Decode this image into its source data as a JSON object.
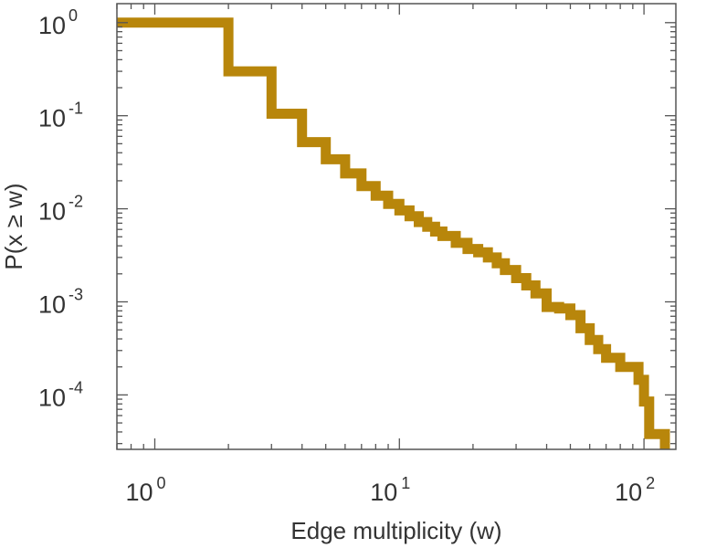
{
  "chart_data": {
    "type": "line",
    "xlabel": "Edge multiplicity (w)",
    "ylabel": "P(x ≥ w)",
    "x_scale": "log",
    "y_scale": "log",
    "xlim": [
      0.7,
      135
    ],
    "ylim": [
      2.6e-05,
      1.6
    ],
    "grid": false,
    "x_ticks": [
      {
        "value": 1,
        "base": "10",
        "exp": "0"
      },
      {
        "value": 10,
        "base": "10",
        "exp": "1"
      },
      {
        "value": 100,
        "base": "10",
        "exp": "2"
      }
    ],
    "y_ticks": [
      {
        "value": 1,
        "base": "10",
        "exp": "0"
      },
      {
        "value": 0.1,
        "base": "10",
        "exp": "-1"
      },
      {
        "value": 0.01,
        "base": "10",
        "exp": "-2"
      },
      {
        "value": 0.001,
        "base": "10",
        "exp": "-3"
      },
      {
        "value": 0.0001,
        "base": "10",
        "exp": "-4"
      }
    ],
    "series": [
      {
        "color": "#b8860b",
        "x": [
          1,
          2,
          3,
          4,
          5,
          6,
          7,
          8,
          9,
          10,
          11,
          12,
          13,
          14,
          15,
          17,
          19,
          21,
          23,
          25,
          27,
          30,
          33,
          36,
          40,
          45,
          50,
          55,
          60,
          65,
          70,
          80,
          95,
          100,
          105,
          120
        ],
        "y": [
          1,
          0.3,
          0.105,
          0.052,
          0.034,
          0.024,
          0.0175,
          0.0138,
          0.0113,
          0.0096,
          0.0083,
          0.0072,
          0.0064,
          0.0057,
          0.0051,
          0.0043,
          0.0037,
          0.0034,
          0.003,
          0.0026,
          0.0022,
          0.0018,
          0.0015,
          0.00123,
          0.00088,
          0.00085,
          0.00072,
          0.00052,
          0.00039,
          0.00031,
          0.00025,
          0.0002,
          0.000145,
          8.5e-05,
          3.8e-05,
          3.8e-05
        ]
      }
    ]
  }
}
